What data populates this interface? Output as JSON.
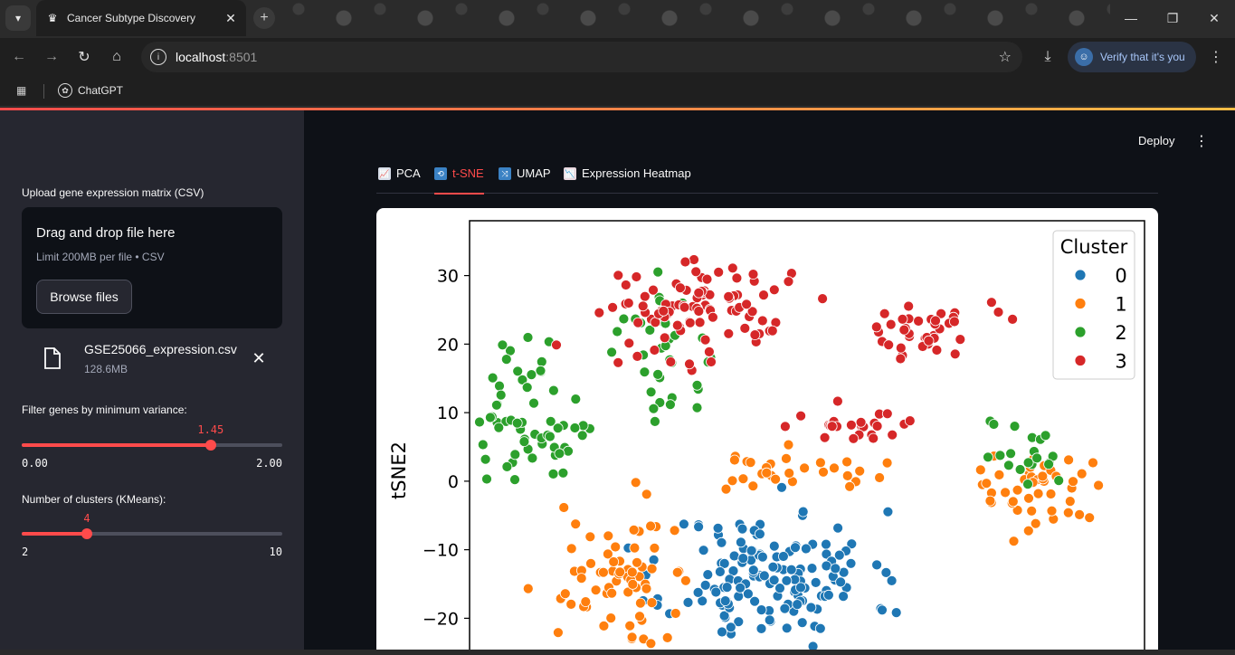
{
  "browser": {
    "tab_title": "Cancer Subtype Discovery",
    "url_host": "localhost",
    "url_port": ":8501",
    "verify_label": "Verify that it's you",
    "bookmark_label": "ChatGPT"
  },
  "sidebar": {
    "upload_label": "Upload gene expression matrix (CSV)",
    "dropzone_title": "Drag and drop file here",
    "dropzone_limit": "Limit 200MB per file • CSV",
    "browse_label": "Browse files",
    "file_name": "GSE25066_expression.csv",
    "file_size": "128.6MB",
    "variance": {
      "label": "Filter genes by minimum variance:",
      "value": "1.45",
      "min": "0.00",
      "max": "2.00",
      "fraction": 0.725
    },
    "clusters": {
      "label": "Number of clusters (KMeans):",
      "value": "4",
      "min": "2",
      "max": "10",
      "fraction": 0.25
    }
  },
  "main": {
    "deploy_label": "Deploy",
    "tabs": [
      {
        "label": "PCA",
        "icon": "chart-icon",
        "active": false
      },
      {
        "label": "t-SNE",
        "icon": "repeat-icon",
        "active": true
      },
      {
        "label": "UMAP",
        "icon": "shuffle-icon",
        "active": false
      },
      {
        "label": "Expression Heatmap",
        "icon": "heatmap-chart-icon",
        "active": false
      }
    ]
  },
  "colors": {
    "accent": "#ff4b4b",
    "cluster_0": "#1f77b4",
    "cluster_1": "#ff7f0e",
    "cluster_2": "#2ca02c",
    "cluster_3": "#d62728"
  },
  "chart_data": {
    "type": "scatter",
    "xlabel": "",
    "ylabel": "tSNE2",
    "yticks": [
      30,
      20,
      10,
      0,
      -10,
      -20
    ],
    "ytick_labels": [
      "30",
      "20",
      "10",
      "0",
      "−10",
      "−20"
    ],
    "legend": {
      "title": "Cluster",
      "entries": [
        "0",
        "1",
        "2",
        "3"
      ],
      "placement": "top-right"
    },
    "grid": false,
    "clusters": [
      {
        "name": "0",
        "color": "#1f77b4",
        "center": [
          3,
          -14
        ],
        "spread": [
          7,
          8
        ],
        "count": 150,
        "seed": 11
      },
      {
        "name": "1",
        "color": "#ff7f0e",
        "center": [
          -10,
          -14
        ],
        "spread": [
          4,
          8
        ],
        "count": 70,
        "seed": 22
      },
      {
        "name": "1",
        "color": "#ff7f0e",
        "center": [
          25,
          -2
        ],
        "spread": [
          4,
          5
        ],
        "count": 45,
        "seed": 33
      },
      {
        "name": "1",
        "color": "#ff7f0e",
        "center": [
          4,
          1
        ],
        "spread": [
          8,
          3
        ],
        "count": 30,
        "seed": 44
      },
      {
        "name": "2",
        "color": "#2ca02c",
        "center": [
          -17,
          8
        ],
        "spread": [
          4,
          9
        ],
        "count": 60,
        "seed": 55
      },
      {
        "name": "2",
        "color": "#2ca02c",
        "center": [
          -6,
          18
        ],
        "spread": [
          4,
          9
        ],
        "count": 35,
        "seed": 66
      },
      {
        "name": "2",
        "color": "#2ca02c",
        "center": [
          24,
          5
        ],
        "spread": [
          4,
          5
        ],
        "count": 20,
        "seed": 77
      },
      {
        "name": "3",
        "color": "#d62728",
        "center": [
          -3,
          25
        ],
        "spread": [
          6,
          6
        ],
        "count": 95,
        "seed": 88
      },
      {
        "name": "3",
        "color": "#d62728",
        "center": [
          16,
          22
        ],
        "spread": [
          4,
          4
        ],
        "count": 40,
        "seed": 99
      },
      {
        "name": "3",
        "color": "#d62728",
        "center": [
          10,
          8
        ],
        "spread": [
          4,
          3
        ],
        "count": 25,
        "seed": 111
      }
    ],
    "xlim": [
      -22,
      34
    ],
    "ylim": [
      -28,
      38
    ]
  }
}
